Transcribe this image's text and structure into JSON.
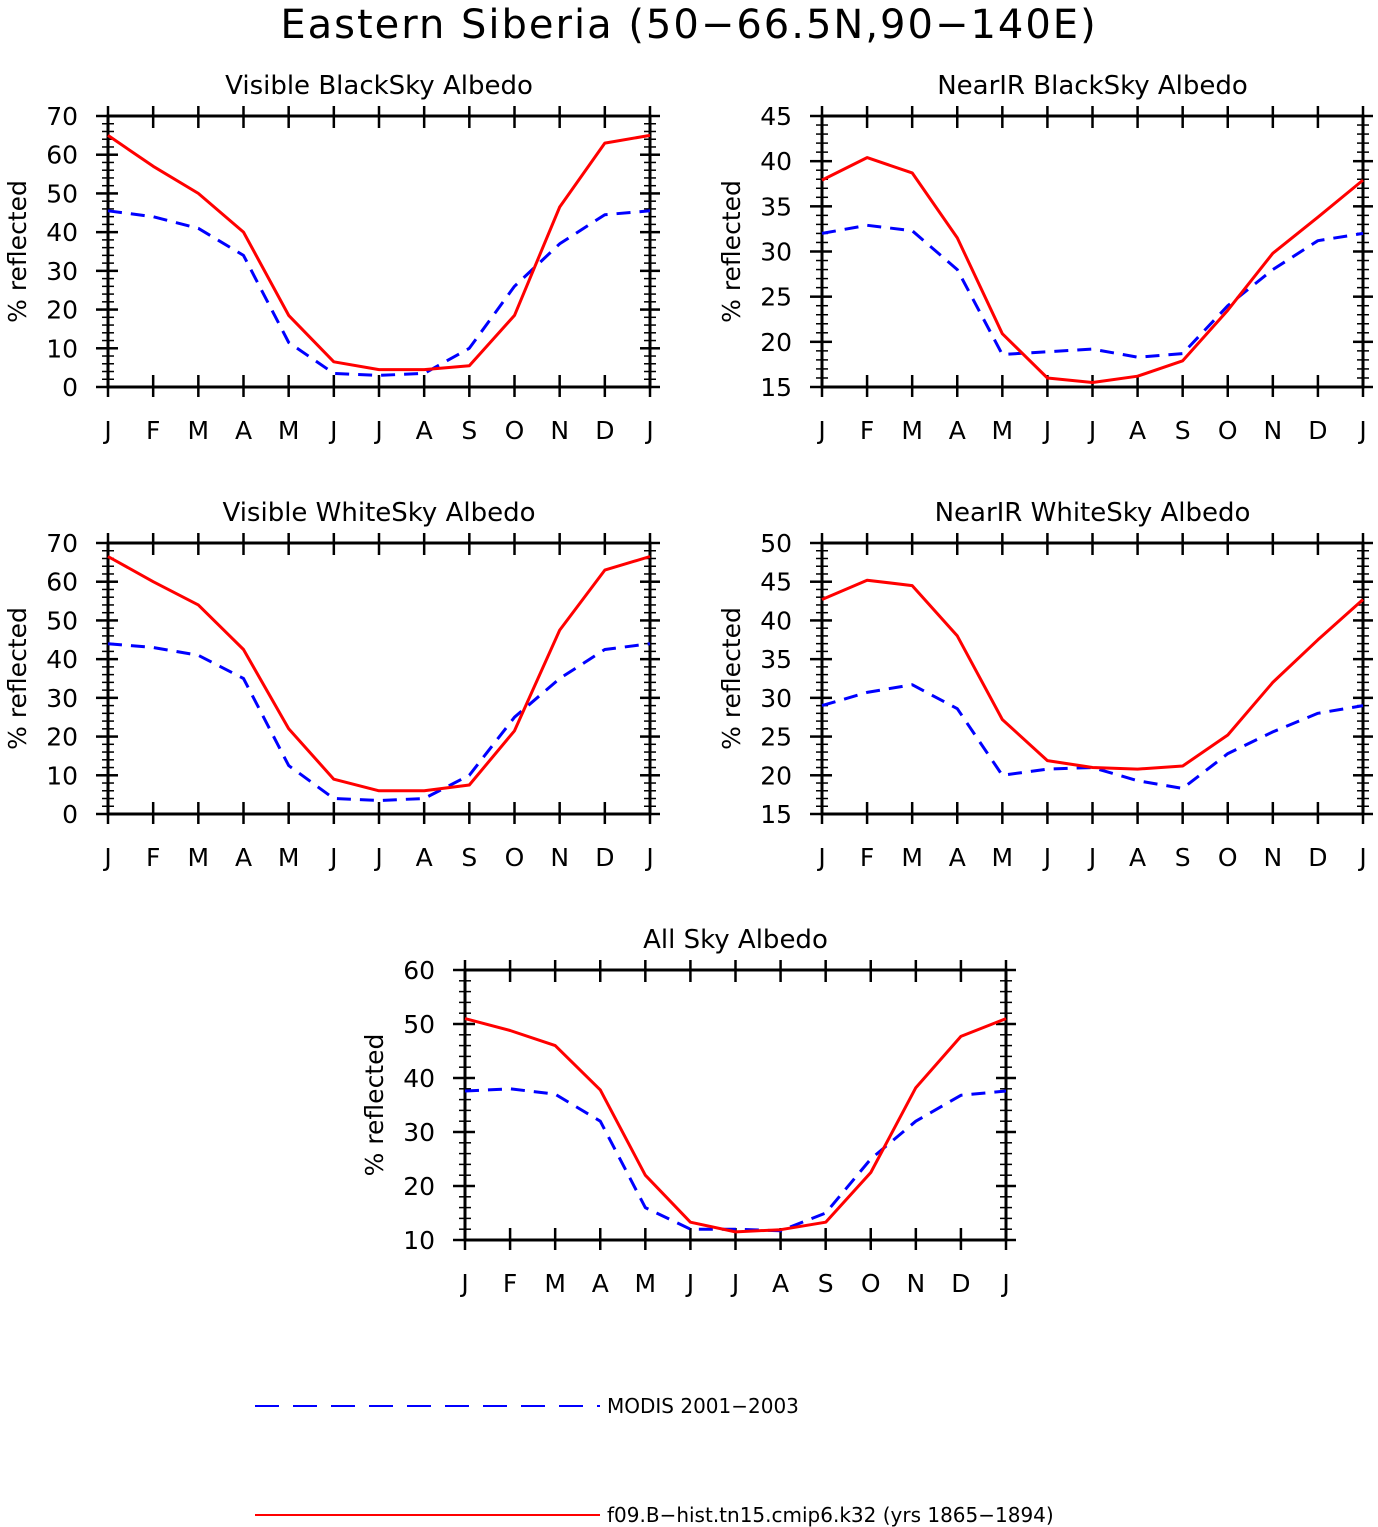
{
  "figure": {
    "title": "Eastern Siberia (50−66.5N,90−140E)"
  },
  "legend": {
    "position": "bottom",
    "entries": [
      {
        "label": "MODIS 2001−2003",
        "color": "#0000ff",
        "style": "dashed"
      },
      {
        "label": "f09.B−hist.tn15.cmip6.k32 (yrs 1865−1894)",
        "color": "#ff0000",
        "style": "solid"
      }
    ]
  },
  "colors": {
    "modis": "#0000ff",
    "model": "#ff0000",
    "axes": "#000000"
  },
  "chart_data": [
    {
      "type": "line",
      "title": "Visible BlackSky Albedo",
      "ylabel": "% reflected",
      "xlabel": "",
      "categories": [
        "J",
        "F",
        "M",
        "A",
        "M",
        "J",
        "J",
        "A",
        "S",
        "O",
        "N",
        "D",
        "J"
      ],
      "ylim": [
        0,
        70
      ],
      "yticks": [
        0,
        10,
        20,
        30,
        40,
        50,
        60,
        70
      ],
      "series": [
        {
          "key": "modis",
          "values": [
            45.5,
            44,
            41,
            34,
            11.5,
            3.5,
            3,
            3.5,
            10,
            26,
            37,
            44.5,
            45.5
          ]
        },
        {
          "key": "model",
          "values": [
            65,
            57,
            50,
            40,
            18.5,
            6.5,
            4.5,
            4.5,
            5.5,
            18.5,
            46.5,
            63,
            65
          ]
        }
      ]
    },
    {
      "type": "line",
      "title": "NearIR BlackSky Albedo",
      "ylabel": "% reflected",
      "xlabel": "",
      "categories": [
        "J",
        "F",
        "M",
        "A",
        "M",
        "J",
        "J",
        "A",
        "S",
        "O",
        "N",
        "D",
        "J"
      ],
      "ylim": [
        15,
        45
      ],
      "yticks": [
        15,
        20,
        25,
        30,
        35,
        40,
        45
      ],
      "series": [
        {
          "key": "modis",
          "values": [
            32,
            32.9,
            32.3,
            28,
            18.6,
            18.9,
            19.2,
            18.3,
            18.7,
            24,
            28,
            31.2,
            32
          ]
        },
        {
          "key": "model",
          "values": [
            37.9,
            40.4,
            38.7,
            31.5,
            20.9,
            16,
            15.5,
            16.2,
            17.9,
            23.5,
            29.8,
            33.8,
            37.9
          ]
        }
      ]
    },
    {
      "type": "line",
      "title": "Visible WhiteSky Albedo",
      "ylabel": "% reflected",
      "xlabel": "",
      "categories": [
        "J",
        "F",
        "M",
        "A",
        "M",
        "J",
        "J",
        "A",
        "S",
        "O",
        "N",
        "D",
        "J"
      ],
      "ylim": [
        0,
        70
      ],
      "yticks": [
        0,
        10,
        20,
        30,
        40,
        50,
        60,
        70
      ],
      "series": [
        {
          "key": "modis",
          "values": [
            44,
            43,
            41,
            35,
            12.5,
            4,
            3.5,
            4,
            10,
            25,
            35,
            42.5,
            44
          ]
        },
        {
          "key": "model",
          "values": [
            66.5,
            60,
            54,
            42.5,
            22,
            9,
            6,
            6,
            7.5,
            21.5,
            47.5,
            63,
            66.5
          ]
        }
      ]
    },
    {
      "type": "line",
      "title": "NearIR WhiteSky Albedo",
      "ylabel": "% reflected",
      "xlabel": "",
      "categories": [
        "J",
        "F",
        "M",
        "A",
        "M",
        "J",
        "J",
        "A",
        "S",
        "O",
        "N",
        "D",
        "J"
      ],
      "ylim": [
        15,
        50
      ],
      "yticks": [
        15,
        20,
        25,
        30,
        35,
        40,
        45,
        50
      ],
      "series": [
        {
          "key": "modis",
          "values": [
            29,
            30.7,
            31.7,
            28.6,
            20,
            20.8,
            21,
            19.3,
            18.3,
            22.8,
            25.6,
            28,
            29
          ]
        },
        {
          "key": "model",
          "values": [
            42.7,
            45.2,
            44.5,
            38,
            27.2,
            21.9,
            21,
            20.8,
            21.2,
            25.2,
            32,
            37.5,
            42.7
          ]
        }
      ]
    },
    {
      "type": "line",
      "title": "All Sky Albedo",
      "ylabel": "% reflected",
      "xlabel": "",
      "categories": [
        "J",
        "F",
        "M",
        "A",
        "M",
        "J",
        "J",
        "A",
        "S",
        "O",
        "N",
        "D",
        "J"
      ],
      "ylim": [
        10,
        60
      ],
      "yticks": [
        10,
        20,
        30,
        40,
        50,
        60
      ],
      "series": [
        {
          "key": "modis",
          "values": [
            37.6,
            38,
            37,
            32,
            16,
            12,
            12,
            11.7,
            15,
            25,
            32,
            36.8,
            37.6
          ]
        },
        {
          "key": "model",
          "values": [
            51,
            48.8,
            46,
            37.8,
            22,
            13.3,
            11.5,
            11.9,
            13.3,
            22.5,
            38.2,
            47.7,
            51
          ]
        }
      ]
    }
  ]
}
